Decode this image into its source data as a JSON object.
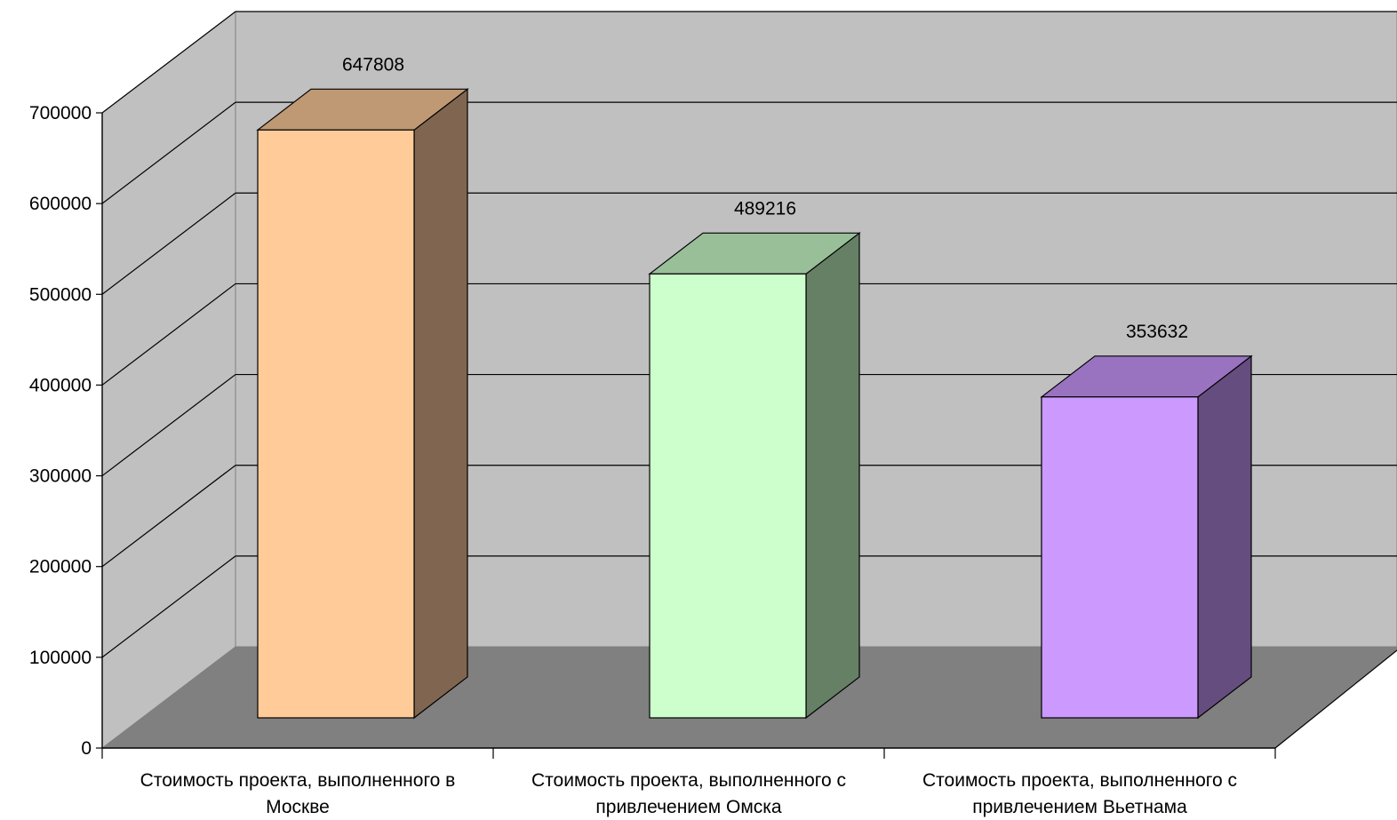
{
  "chart_data": {
    "type": "bar",
    "categories": [
      [
        "Стоимость проекта, выполненного в",
        "Москве"
      ],
      [
        "Стоимость проекта, выполненного с",
        "привлечением Омска"
      ],
      [
        "Стоимость проекта, выполненного с",
        "привлечением Вьетнама"
      ]
    ],
    "values": [
      647808,
      489216,
      353632
    ],
    "value_labels": [
      "647808",
      "489216",
      "353632"
    ],
    "ylim": [
      0,
      700000
    ],
    "yticks": [
      "0",
      "100000",
      "200000",
      "300000",
      "400000",
      "500000",
      "600000",
      "700000"
    ],
    "grid": true,
    "legend": "none",
    "colors": {
      "back_wall": "#c0c0c0",
      "side_wall": "#c0c0c0",
      "floor": "#808080",
      "bars": [
        {
          "front": "#ffcc99",
          "top": "#bf9973",
          "side": "#806650"
        },
        {
          "front": "#ccffcc",
          "top": "#99bf99",
          "side": "#668066"
        },
        {
          "front": "#cc99ff",
          "top": "#9973bf",
          "side": "#664d80"
        }
      ]
    }
  }
}
